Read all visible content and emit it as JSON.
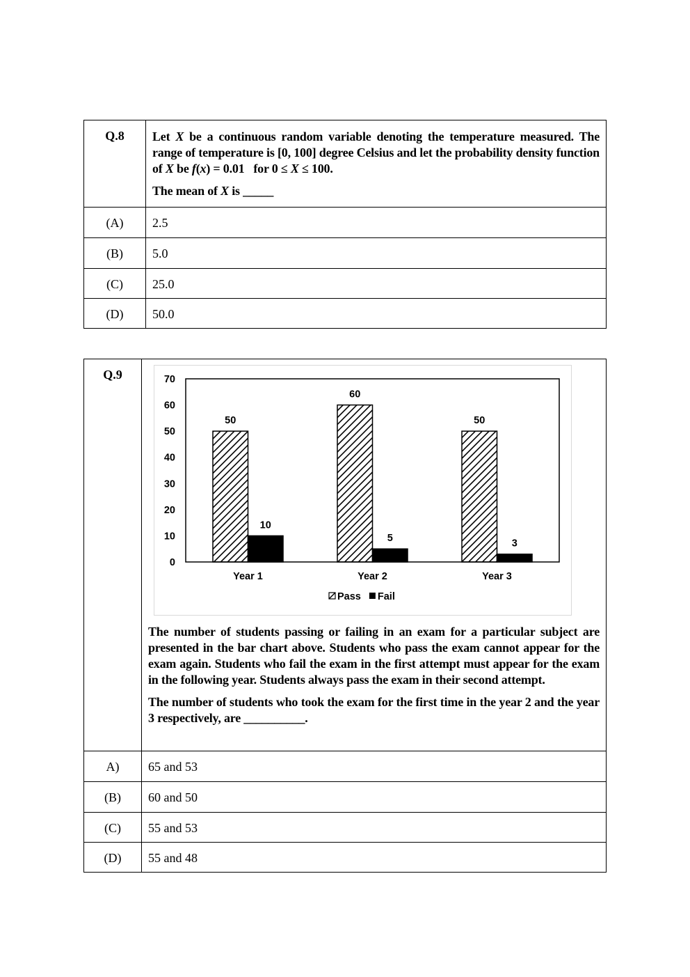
{
  "q8": {
    "number": "Q.8",
    "stem_lines": [
      "Let X be a continuous random variable denoting the temperature measured. The range of temperature is [0, 100] degree Celsius and let the probability density function of X be f(x) = 0.01   for 0 ≤ X ≤ 100."
    ],
    "stem_parts": {
      "p1a": "Let ",
      "x1": "X",
      "p1b": " be a continuous random variable denoting the temperature measured. The range of temperature is [0, 100] degree Celsius and let the probability density function of ",
      "x2": "X",
      "p1c": " be ",
      "f": "f",
      "p1d": "(",
      "x3": "x",
      "p1e": ") = 0.01   for 0 ≤ ",
      "x4": "X",
      "p1f": " ≤ 100.",
      "p2a": "The mean of ",
      "x5": "X",
      "p2b": " is _____"
    },
    "options": [
      {
        "label": "(A)",
        "text": "2.5"
      },
      {
        "label": "(B)",
        "text": "5.0"
      },
      {
        "label": "(C)",
        "text": "25.0"
      },
      {
        "label": "(D)",
        "text": "50.0"
      }
    ]
  },
  "q9": {
    "number": "Q.9",
    "paragraph1": "The number of students passing or failing in an exam for a particular subject are presented in the bar chart above.  Students who pass the exam cannot appear for the exam again. Students who fail the exam in the first attempt must appear for the exam in the following year. Students always pass the exam in their second attempt.",
    "paragraph2": "The number of students who took the exam for the first time in the year 2 and the year 3 respectively, are __________.",
    "options": [
      {
        "label": "A)",
        "text": "65 and 53"
      },
      {
        "label": "(B)",
        "text": "60 and 50"
      },
      {
        "label": "(C)",
        "text": "55 and 53"
      },
      {
        "label": "(D)",
        "text": "55 and 48"
      }
    ]
  },
  "chart_data": {
    "type": "bar",
    "categories": [
      "Year 1",
      "Year 2",
      "Year 3"
    ],
    "series": [
      {
        "name": "Pass",
        "values": [
          50,
          60,
          50
        ],
        "fill": "diagonal-hatch"
      },
      {
        "name": "Fail",
        "values": [
          10,
          5,
          3
        ],
        "fill": "#000000"
      }
    ],
    "data_labels": true,
    "yticks": [
      0,
      10,
      20,
      30,
      40,
      50,
      60,
      70
    ],
    "ylim": [
      0,
      70
    ],
    "grid": false,
    "legend": "bottom",
    "title": "",
    "xlabel": "",
    "ylabel": ""
  }
}
